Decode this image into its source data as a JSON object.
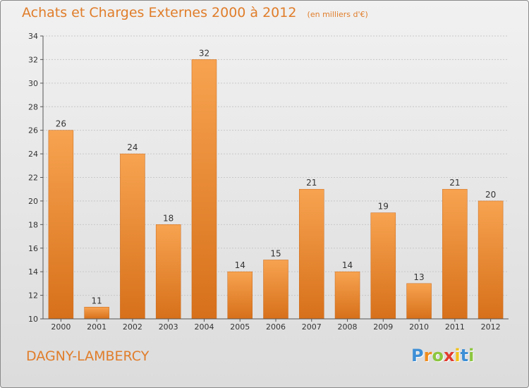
{
  "chart_data": {
    "type": "bar",
    "title": "Achats et Charges Externes 2000 à 2012",
    "unit_note": "(en milliers d'€)",
    "categories": [
      "2000",
      "2001",
      "2002",
      "2003",
      "2004",
      "2005",
      "2006",
      "2007",
      "2008",
      "2009",
      "2010",
      "2011",
      "2012"
    ],
    "values": [
      26,
      11,
      24,
      18,
      32,
      14,
      15,
      21,
      14,
      19,
      13,
      21,
      20
    ],
    "ylim": [
      10,
      34
    ],
    "yticks": [
      10,
      12,
      14,
      16,
      18,
      20,
      22,
      24,
      26,
      28,
      30,
      32,
      34
    ],
    "xlabel": "",
    "ylabel": "",
    "grid": true,
    "bar_color_top": "#f7a350",
    "bar_color_bottom": "#d7701a"
  },
  "footer": {
    "city": "DAGNY-LAMBERCY",
    "logo_letters": [
      "P",
      "r",
      "o",
      "x",
      "i",
      "t",
      "i"
    ],
    "logo_colors": [
      "#3d8fd6",
      "#f08c1c",
      "#8cc63f",
      "#e23a2e",
      "#f2c21b",
      "#3d8fd6",
      "#8cc63f"
    ]
  },
  "colors": {
    "accent": "#e07d2a",
    "grid": "#c8c8c8",
    "axis": "#555555"
  }
}
